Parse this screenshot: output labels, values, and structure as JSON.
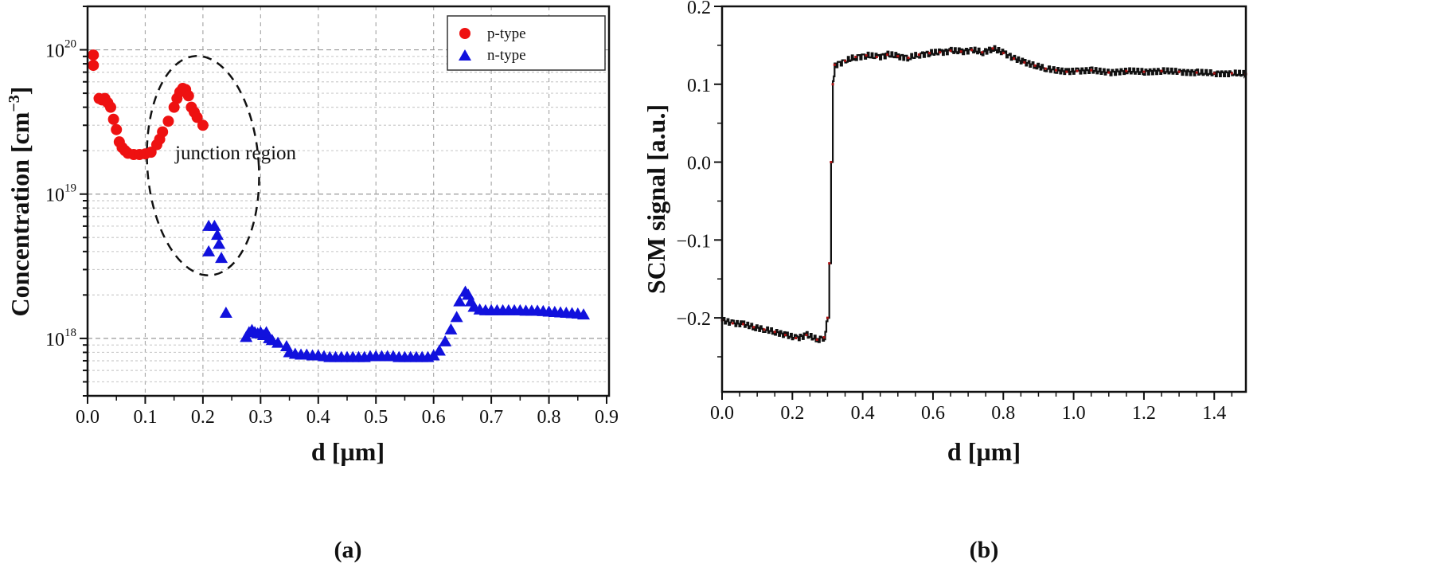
{
  "chart_data": [
    {
      "type": "scatter",
      "panel_label": "(a)",
      "xlabel": "d [µm]",
      "ylabel": "Concentration [cm",
      "ylabel_sup": "−3",
      "ylabel_close": "]",
      "xlim": [
        0,
        0.9
      ],
      "yscale": "log",
      "ylim": [
        4e+17,
        2e+20
      ],
      "xticks": [
        "0.0",
        "0.1",
        "0.2",
        "0.3",
        "0.4",
        "0.5",
        "0.6",
        "0.7",
        "0.8",
        "0.9"
      ],
      "yticks": [
        {
          "base": "10",
          "exp": "20",
          "value": 1e+20
        },
        {
          "base": "10",
          "exp": "19",
          "value": 1e+19
        },
        {
          "base": "10",
          "exp": "18",
          "value": 1e+18
        }
      ],
      "grid": true,
      "legend_position": "top-right",
      "annotation": "junction region",
      "series": [
        {
          "name": "p-type",
          "marker": "circle",
          "color": "#ee1111",
          "x": [
            0.01,
            0.01,
            0.02,
            0.025,
            0.03,
            0.035,
            0.04,
            0.045,
            0.05,
            0.055,
            0.06,
            0.065,
            0.07,
            0.08,
            0.09,
            0.1,
            0.11,
            0.12,
            0.125,
            0.13,
            0.14,
            0.15,
            0.155,
            0.16,
            0.165,
            0.17,
            0.175,
            0.18,
            0.185,
            0.19,
            0.2
          ],
          "y": [
            9.2e+19,
            7.8e+19,
            4.6e+19,
            4.5e+19,
            4.6e+19,
            4.3e+19,
            4e+19,
            3.3e+19,
            2.8e+19,
            2.3e+19,
            2.1e+19,
            2e+19,
            1.92e+19,
            1.88e+19,
            1.88e+19,
            1.9e+19,
            1.95e+19,
            2.2e+19,
            2.4e+19,
            2.7e+19,
            3.2e+19,
            4e+19,
            4.6e+19,
            5.1e+19,
            5.4e+19,
            5.3e+19,
            4.8e+19,
            4e+19,
            3.7e+19,
            3.4e+19,
            3e+19
          ]
        },
        {
          "name": "n-type",
          "marker": "triangle",
          "color": "#1111dd",
          "x": [
            0.21,
            0.22,
            0.225,
            0.228,
            0.21,
            0.232,
            0.24,
            0.275,
            0.28,
            0.285,
            0.29,
            0.295,
            0.3,
            0.305,
            0.31,
            0.315,
            0.32,
            0.33,
            0.345,
            0.35,
            0.36,
            0.37,
            0.38,
            0.39,
            0.4,
            0.41,
            0.42,
            0.43,
            0.44,
            0.45,
            0.46,
            0.47,
            0.48,
            0.49,
            0.5,
            0.51,
            0.52,
            0.53,
            0.54,
            0.55,
            0.56,
            0.57,
            0.58,
            0.59,
            0.6,
            0.61,
            0.62,
            0.63,
            0.64,
            0.645,
            0.655,
            0.66,
            0.665,
            0.67,
            0.68,
            0.69,
            0.7,
            0.71,
            0.72,
            0.73,
            0.74,
            0.75,
            0.76,
            0.77,
            0.78,
            0.79,
            0.8,
            0.81,
            0.82,
            0.83,
            0.84,
            0.85,
            0.86
          ],
          "y": [
            6e+18,
            6e+18,
            5.2e+18,
            4.5e+18,
            4e+18,
            3.6e+18,
            1.5e+18,
            1.02e+18,
            1.1e+18,
            1.14e+18,
            1.1e+18,
            1.08e+18,
            1.1e+18,
            1.05e+18,
            1.1e+18,
            1e+18,
            9.7e+17,
            9.3e+17,
            8.8e+17,
            8e+17,
            7.8e+17,
            7.7e+17,
            7.7e+17,
            7.6e+17,
            7.6e+17,
            7.5e+17,
            7.4e+17,
            7.4e+17,
            7.4e+17,
            7.4e+17,
            7.4e+17,
            7.4e+17,
            7.4e+17,
            7.5e+17,
            7.5e+17,
            7.5e+17,
            7.5e+17,
            7.5e+17,
            7.4e+17,
            7.4e+17,
            7.4e+17,
            7.4e+17,
            7.4e+17,
            7.4e+17,
            7.6e+17,
            8.2e+17,
            9.5e+17,
            1.15e+18,
            1.4e+18,
            1.8e+18,
            2.1e+18,
            2e+18,
            1.8e+18,
            1.65e+18,
            1.58e+18,
            1.56e+18,
            1.56e+18,
            1.56e+18,
            1.56e+18,
            1.56e+18,
            1.56e+18,
            1.56e+18,
            1.55e+18,
            1.55e+18,
            1.55e+18,
            1.54e+18,
            1.53e+18,
            1.52e+18,
            1.51e+18,
            1.5e+18,
            1.49e+18,
            1.48e+18,
            1.46e+18
          ]
        }
      ]
    },
    {
      "type": "line",
      "panel_label": "(b)",
      "xlabel": "d [µm]",
      "ylabel": "SCM signal [a.u.]",
      "xlim": [
        0,
        1.49
      ],
      "ylim": [
        -0.295,
        0.2
      ],
      "xticks": [
        "0.0",
        "0.2",
        "0.4",
        "0.6",
        "0.8",
        "1.0",
        "1.2",
        "1.4"
      ],
      "yticks": [
        "0.2",
        "0.1",
        "0.0",
        "−0.1",
        "−0.2"
      ],
      "grid": false,
      "series": [
        {
          "name": "SCM signal",
          "color": "#111111",
          "marker_color": "#aa1111",
          "x": [
            0.0,
            0.03,
            0.06,
            0.09,
            0.12,
            0.15,
            0.18,
            0.21,
            0.24,
            0.27,
            0.29,
            0.3,
            0.305,
            0.31,
            0.315,
            0.32,
            0.35,
            0.38,
            0.41,
            0.44,
            0.47,
            0.5,
            0.53,
            0.56,
            0.59,
            0.62,
            0.65,
            0.68,
            0.71,
            0.74,
            0.77,
            0.8,
            0.83,
            0.86,
            0.89,
            0.92,
            0.95,
            0.98,
            1.01,
            1.05,
            1.1,
            1.15,
            1.2,
            1.25,
            1.3,
            1.35,
            1.4,
            1.45,
            1.49
          ],
          "y": [
            -0.203,
            -0.207,
            -0.208,
            -0.212,
            -0.215,
            -0.218,
            -0.222,
            -0.226,
            -0.222,
            -0.228,
            -0.225,
            -0.2,
            -0.13,
            0.0,
            0.1,
            0.125,
            0.13,
            0.135,
            0.137,
            0.135,
            0.138,
            0.136,
            0.134,
            0.138,
            0.14,
            0.141,
            0.143,
            0.142,
            0.144,
            0.141,
            0.146,
            0.14,
            0.133,
            0.128,
            0.124,
            0.12,
            0.118,
            0.116,
            0.117,
            0.118,
            0.115,
            0.117,
            0.116,
            0.117,
            0.116,
            0.115,
            0.114,
            0.114,
            0.113
          ]
        }
      ]
    }
  ]
}
